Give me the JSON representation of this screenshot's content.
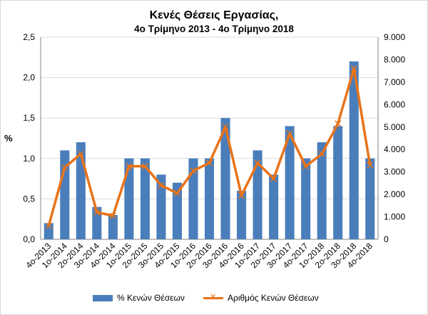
{
  "title_line1": "Κενές Θέσεις Εργασίας,",
  "title_line2": "4ο Τρίμηνο  2013 - 4ο Τρίμηνο  2018",
  "ylabel_left": "%",
  "legend": {
    "bar_label": "% Κενών  Θέσεων",
    "line_label": "Αριθμός Κενών Θέσεων"
  },
  "colors": {
    "bar": "#4a7ebb",
    "line": "#e8731a",
    "grid": "#d9d9d9"
  },
  "chart_data": {
    "type": "bar",
    "title": "Κενές Θέσεις Εργασίας, 4ο Τρίμηνο  2013 - 4ο Τρίμηνο  2018",
    "categories": [
      "4ο-2013",
      "1ο-2014",
      "2ο-2014",
      "3ο-2014",
      "4ο-2014",
      "1ο-2015",
      "2ο-2015",
      "3ο-2015",
      "4ο-2015",
      "1ο-2016",
      "2ο-2016",
      "3ο-2016",
      "4ο-2016",
      "1ο-2017",
      "2ο-2017",
      "3ο-2017",
      "4ο-2017",
      "1ο-2018",
      "2ο-2018",
      "3ο-2018",
      "4ο-2018"
    ],
    "series": [
      {
        "name": "% Κενών  Θέσεων",
        "type": "bar",
        "axis": "left",
        "values": [
          0.2,
          1.1,
          1.2,
          0.4,
          0.3,
          1.0,
          1.0,
          0.8,
          0.7,
          1.0,
          1.0,
          1.5,
          0.6,
          1.1,
          0.8,
          1.4,
          1.0,
          1.2,
          1.4,
          2.2,
          1.0
        ]
      },
      {
        "name": "Αριθμός Κενών Θέσεων",
        "type": "line",
        "axis": "right",
        "values": [
          600,
          3200,
          3800,
          1200,
          1050,
          3250,
          3250,
          2400,
          2050,
          3050,
          3400,
          5000,
          1950,
          3400,
          2700,
          4700,
          3250,
          3800,
          5150,
          7600,
          3300
        ]
      }
    ],
    "ylabel": "%",
    "ylim_left": [
      0,
      2.5
    ],
    "yticks_left": [
      "0,0",
      "0,5",
      "1,0",
      "1,5",
      "2,0",
      "2,5"
    ],
    "ylim_right": [
      0,
      9000
    ],
    "yticks_right": [
      "0",
      "1.000",
      "2.000",
      "3.000",
      "4.000",
      "5.000",
      "6.000",
      "7.000",
      "8.000",
      "9.000"
    ],
    "grid": true,
    "legend_position": "bottom"
  }
}
